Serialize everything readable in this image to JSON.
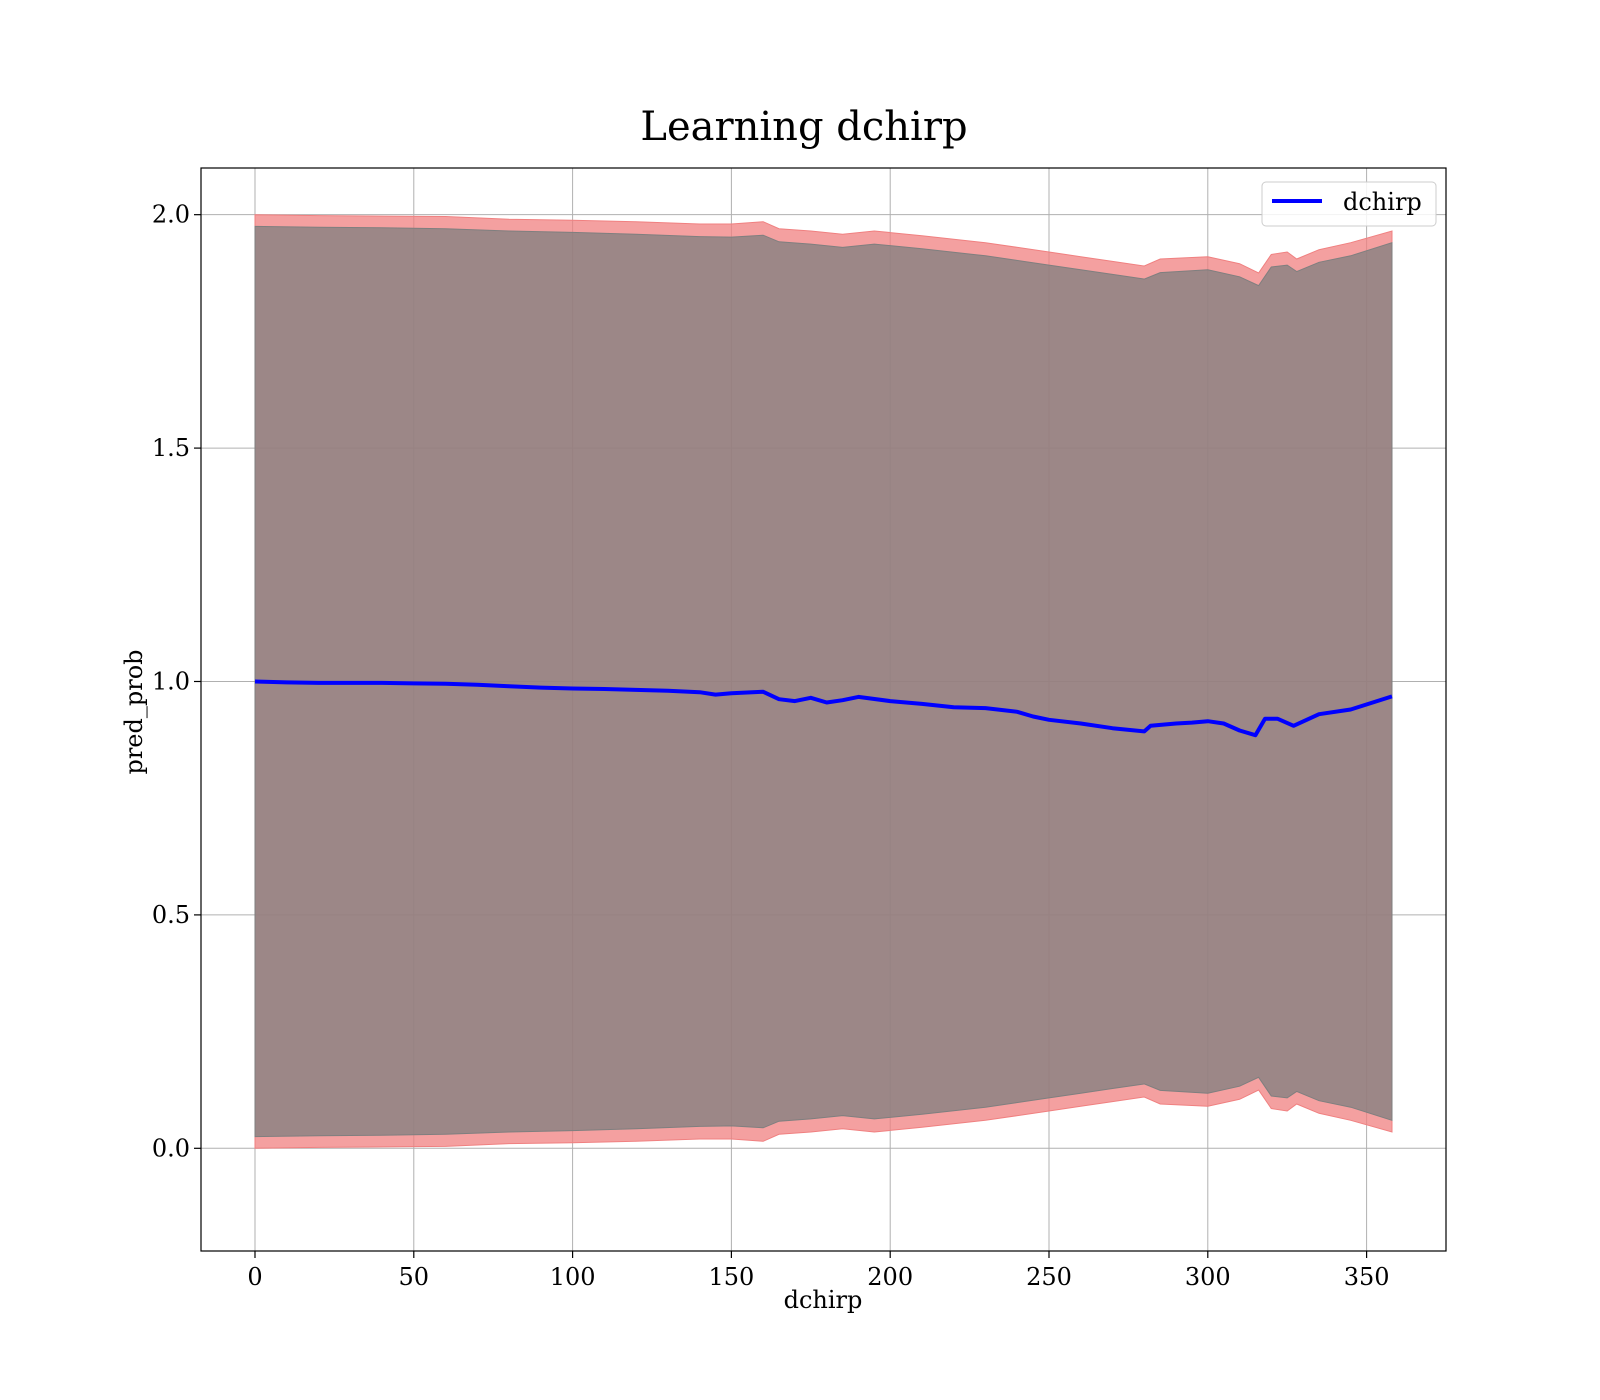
{
  "chart_data": {
    "type": "line",
    "title": "Learning dchirp",
    "xlabel": "dchirp",
    "ylabel": "pred_prob",
    "xlim": [
      -17,
      375
    ],
    "ylim": [
      -0.22,
      2.1
    ],
    "xticks": [
      0,
      50,
      100,
      150,
      200,
      250,
      300,
      350
    ],
    "xtick_labels": [
      "0",
      "50",
      "100",
      "150",
      "200",
      "250",
      "300",
      "350"
    ],
    "yticks": [
      0.0,
      0.5,
      1.0,
      1.5,
      2.0
    ],
    "ytick_labels": [
      "0.0",
      "0.5",
      "1.0",
      "1.5",
      "2.0"
    ],
    "grid": true,
    "legend": {
      "position": "top-right"
    },
    "series": [
      {
        "name": "dchirp",
        "color": "#0000ff",
        "x": [
          0,
          10,
          20,
          30,
          40,
          50,
          60,
          70,
          80,
          90,
          100,
          110,
          120,
          130,
          140,
          145,
          150,
          160,
          165,
          170,
          175,
          180,
          185,
          190,
          200,
          210,
          220,
          230,
          240,
          245,
          250,
          260,
          270,
          280,
          282,
          290,
          295,
          300,
          305,
          310,
          315,
          318,
          322,
          327,
          335,
          345,
          358
        ],
        "y": [
          1.0,
          0.998,
          0.997,
          0.997,
          0.997,
          0.996,
          0.995,
          0.993,
          0.99,
          0.987,
          0.985,
          0.984,
          0.982,
          0.98,
          0.977,
          0.972,
          0.975,
          0.978,
          0.962,
          0.958,
          0.965,
          0.955,
          0.96,
          0.967,
          0.958,
          0.952,
          0.945,
          0.943,
          0.935,
          0.925,
          0.918,
          0.91,
          0.9,
          0.893,
          0.905,
          0.91,
          0.912,
          0.915,
          0.91,
          0.895,
          0.885,
          0.92,
          0.92,
          0.905,
          0.93,
          0.94,
          0.968
        ]
      }
    ],
    "bands": [
      {
        "color": "#f08080",
        "x": [
          0,
          20,
          40,
          60,
          80,
          100,
          120,
          140,
          150,
          160,
          165,
          175,
          185,
          195,
          210,
          230,
          250,
          260,
          270,
          280,
          285,
          300,
          310,
          316,
          320,
          325,
          328,
          335,
          345,
          358
        ],
        "upper": [
          2.0,
          1.998,
          1.997,
          1.996,
          1.99,
          1.988,
          1.985,
          1.98,
          1.98,
          1.985,
          1.97,
          1.965,
          1.958,
          1.965,
          1.955,
          1.94,
          1.92,
          1.91,
          1.9,
          1.89,
          1.905,
          1.91,
          1.895,
          1.875,
          1.915,
          1.92,
          1.905,
          1.925,
          1.94,
          1.965
        ],
        "lower": [
          0.0,
          0.002,
          0.003,
          0.004,
          0.01,
          0.012,
          0.015,
          0.02,
          0.02,
          0.015,
          0.03,
          0.035,
          0.042,
          0.035,
          0.045,
          0.06,
          0.08,
          0.09,
          0.1,
          0.11,
          0.095,
          0.09,
          0.105,
          0.125,
          0.085,
          0.08,
          0.095,
          0.075,
          0.06,
          0.035
        ]
      },
      {
        "color": "#7f7f7f",
        "x": [
          0,
          20,
          40,
          60,
          80,
          100,
          120,
          140,
          150,
          160,
          165,
          175,
          185,
          195,
          210,
          230,
          250,
          260,
          270,
          280,
          285,
          300,
          310,
          316,
          320,
          325,
          328,
          335,
          345,
          358
        ],
        "upper": [
          1.975,
          1.973,
          1.972,
          1.97,
          1.965,
          1.962,
          1.958,
          1.953,
          1.952,
          1.956,
          1.942,
          1.937,
          1.93,
          1.937,
          1.927,
          1.912,
          1.892,
          1.882,
          1.872,
          1.862,
          1.876,
          1.882,
          1.867,
          1.848,
          1.888,
          1.892,
          1.878,
          1.898,
          1.912,
          1.94
        ],
        "lower": [
          0.025,
          0.027,
          0.028,
          0.03,
          0.035,
          0.038,
          0.042,
          0.047,
          0.048,
          0.044,
          0.058,
          0.063,
          0.07,
          0.063,
          0.073,
          0.088,
          0.108,
          0.118,
          0.128,
          0.138,
          0.124,
          0.118,
          0.133,
          0.152,
          0.112,
          0.108,
          0.122,
          0.102,
          0.088,
          0.06
        ]
      }
    ]
  }
}
